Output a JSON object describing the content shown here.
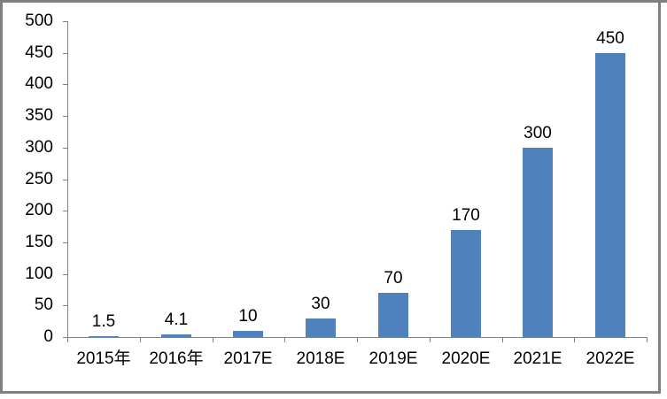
{
  "window": {
    "background": "#FFFFFF"
  },
  "chart_data": {
    "type": "bar",
    "title": "",
    "xlabel": "",
    "ylabel": "",
    "categories": [
      "2015年",
      "2016年",
      "2017E",
      "2018E",
      "2019E",
      "2020E",
      "2021E",
      "2022E"
    ],
    "values": [
      1.5,
      4.1,
      10,
      30,
      70,
      170,
      300,
      450
    ],
    "data_labels": [
      "1.5",
      "4.1",
      "10",
      "30",
      "70",
      "170",
      "300",
      "450"
    ],
    "ylim": [
      0,
      500
    ],
    "ytick_step": 50,
    "ytick_labels": [
      "0",
      "50",
      "100",
      "150",
      "200",
      "250",
      "300",
      "350",
      "400",
      "450",
      "500"
    ],
    "grid": false,
    "legend": false,
    "bar_color": "#4F81BD",
    "axis_color": "#808080",
    "frame_color": "#808080",
    "text_color": "#000000",
    "plot_background": "#FFFFFF"
  }
}
